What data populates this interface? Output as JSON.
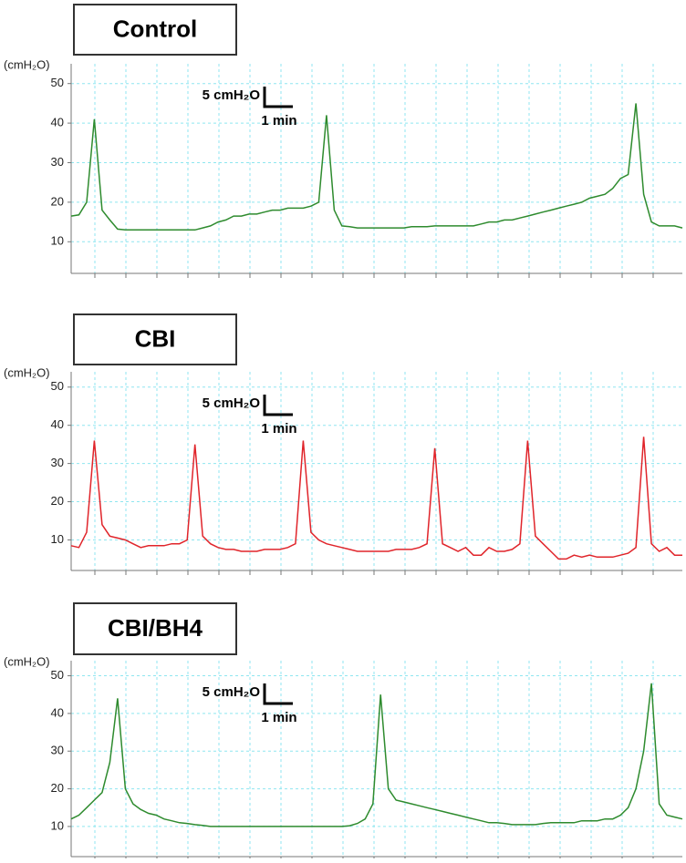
{
  "chart_data": [
    {
      "type": "line",
      "title": "Control",
      "y_label": "(cmH₂O)",
      "scale_bar_y": "5 cmH₂O",
      "scale_bar_x": "1 min",
      "color": "#2e8b2e",
      "ylim": [
        2,
        55
      ],
      "yticks": [
        10,
        20,
        30,
        40,
        50
      ],
      "grid": true,
      "values": [
        16.5,
        16.8,
        20,
        41,
        18,
        15.5,
        13.2,
        13,
        13,
        13,
        13,
        13,
        13,
        13,
        13,
        13,
        13,
        13.5,
        14,
        15,
        15.5,
        16.5,
        16.5,
        17,
        17,
        17.5,
        18,
        18,
        18.5,
        18.5,
        18.5,
        19,
        20,
        42,
        18,
        14,
        13.8,
        13.5,
        13.5,
        13.5,
        13.5,
        13.5,
        13.5,
        13.5,
        13.8,
        13.8,
        13.8,
        14,
        14,
        14,
        14,
        14,
        14,
        14.5,
        15,
        15,
        15.5,
        15.5,
        16,
        16.5,
        17,
        17.5,
        18,
        18.5,
        19,
        19.5,
        20,
        21,
        21.5,
        22,
        23.5,
        26,
        27,
        45,
        22,
        15,
        14,
        14,
        14,
        13.5
      ]
    },
    {
      "type": "line",
      "title": "CBI",
      "y_label": "(cmH₂O)",
      "scale_bar_y": "5 cmH₂O",
      "scale_bar_x": "1 min",
      "color": "#e0242a",
      "ylim": [
        2,
        54
      ],
      "yticks": [
        10,
        20,
        30,
        40,
        50
      ],
      "grid": true,
      "values": [
        8.5,
        8,
        12,
        36,
        14,
        11,
        10.5,
        10,
        9,
        8,
        8.5,
        8.5,
        8.5,
        9,
        9,
        10,
        35,
        11,
        9,
        8,
        7.5,
        7.5,
        7,
        7,
        7,
        7.5,
        7.5,
        7.5,
        8,
        9,
        36,
        12,
        10,
        9,
        8.5,
        8,
        7.5,
        7,
        7,
        7,
        7,
        7,
        7.5,
        7.5,
        7.5,
        8,
        9,
        34,
        9,
        8,
        7,
        8,
        6,
        6,
        8,
        7,
        7,
        7.5,
        9,
        36,
        11,
        9,
        7,
        5,
        5,
        6,
        5.5,
        6,
        5.5,
        5.5,
        5.5,
        6,
        6.5,
        8,
        37,
        9,
        7,
        8,
        6,
        6
      ]
    },
    {
      "type": "line",
      "title": "CBI/BH4",
      "y_label": "(cmH₂O)",
      "scale_bar_y": "5 cmH₂O",
      "scale_bar_x": "1 min",
      "color": "#2e8b2e",
      "ylim": [
        2,
        54
      ],
      "yticks": [
        10,
        20,
        30,
        40,
        50
      ],
      "grid": true,
      "values": [
        12,
        13,
        15,
        17,
        19,
        27,
        44,
        20,
        16,
        14.5,
        13.5,
        13,
        12,
        11.5,
        11,
        10.8,
        10.5,
        10.3,
        10,
        10,
        10,
        10,
        10,
        10,
        10,
        10,
        10,
        10,
        10,
        10,
        10,
        10,
        10,
        10,
        10,
        10,
        10.2,
        10.8,
        12,
        16,
        45,
        20,
        17,
        16.5,
        16,
        15.5,
        15,
        14.5,
        14,
        13.5,
        13,
        12.5,
        12,
        11.5,
        11,
        11,
        10.8,
        10.5,
        10.5,
        10.5,
        10.5,
        10.8,
        11,
        11,
        11,
        11,
        11.5,
        11.5,
        11.5,
        12,
        12,
        13,
        15,
        20,
        30,
        48,
        16,
        13,
        12.5,
        12
      ]
    }
  ]
}
